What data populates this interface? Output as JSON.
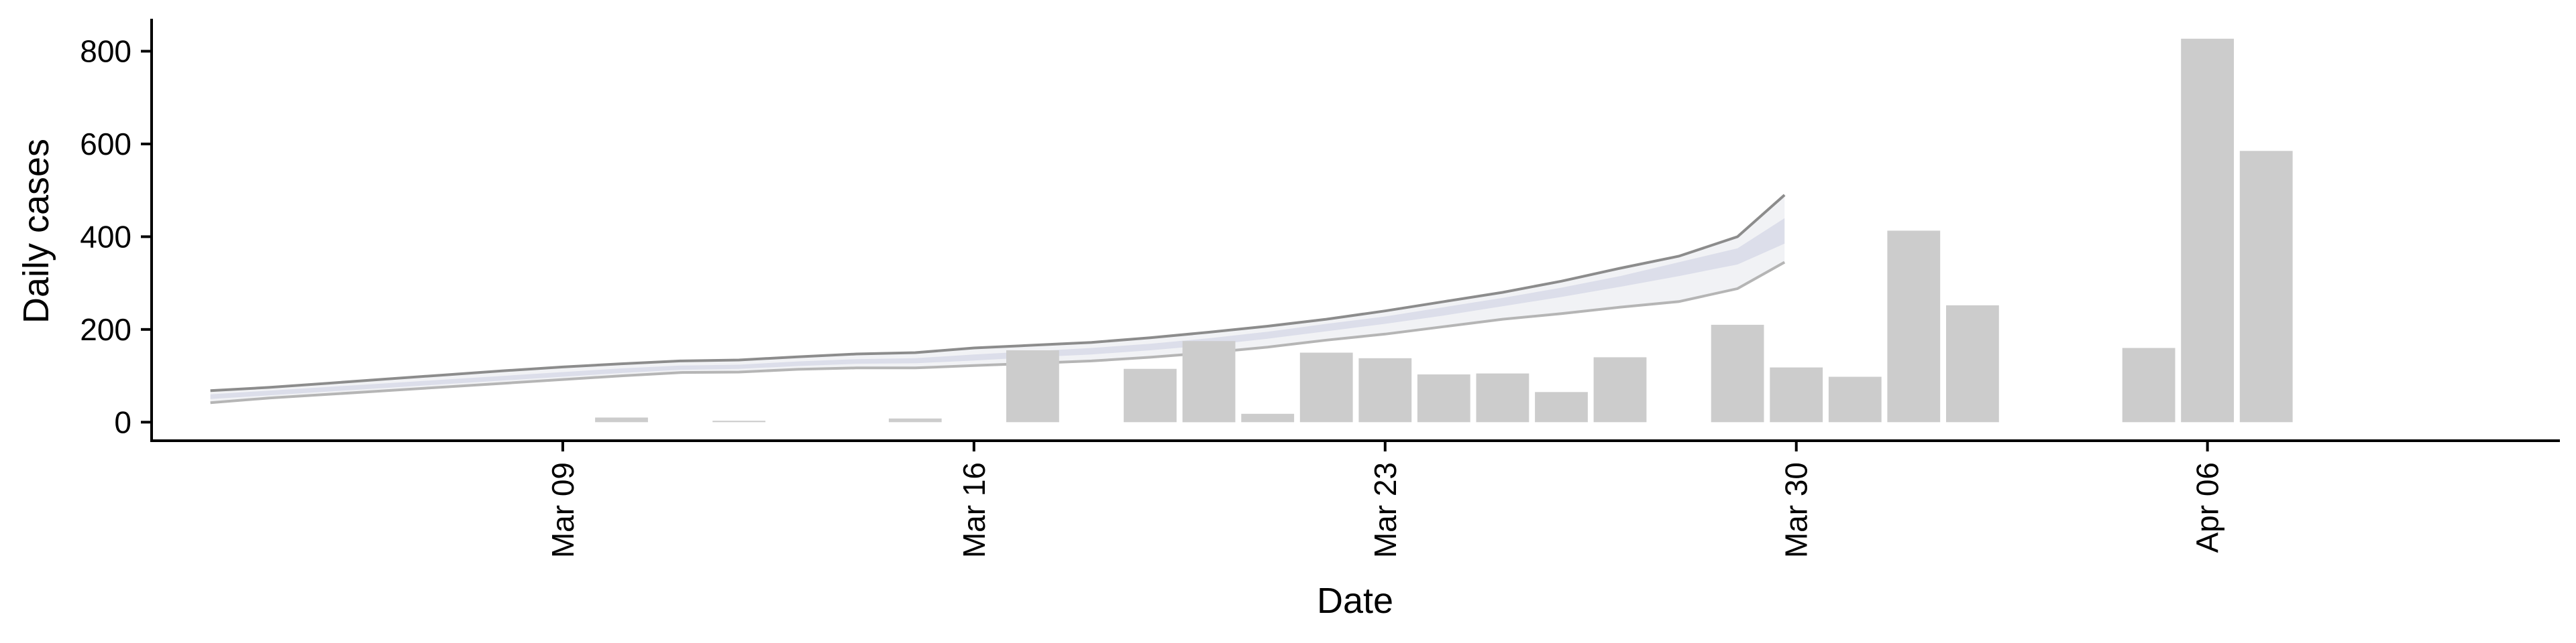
{
  "chart_data": {
    "type": "bar",
    "xlabel": "Date",
    "ylabel": "Daily cases",
    "ylim": [
      -40,
      870
    ],
    "xlim": [
      "2020-03-02",
      "2020-04-12"
    ],
    "x_ticks": [
      {
        "date": "2020-03-09",
        "label": "Mar 09"
      },
      {
        "date": "2020-03-16",
        "label": "Mar 16"
      },
      {
        "date": "2020-03-23",
        "label": "Mar 23"
      },
      {
        "date": "2020-03-30",
        "label": "Mar 30"
      },
      {
        "date": "2020-04-06",
        "label": "Apr 06"
      }
    ],
    "y_ticks": [
      0,
      200,
      400,
      600,
      800
    ],
    "bars": [
      {
        "date": "2020-03-10",
        "value": 10
      },
      {
        "date": "2020-03-12",
        "value": 3
      },
      {
        "date": "2020-03-15",
        "value": 8
      },
      {
        "date": "2020-03-17",
        "value": 155
      },
      {
        "date": "2020-03-19",
        "value": 115
      },
      {
        "date": "2020-03-20",
        "value": 175
      },
      {
        "date": "2020-03-21",
        "value": 18
      },
      {
        "date": "2020-03-22",
        "value": 150
      },
      {
        "date": "2020-03-23",
        "value": 138
      },
      {
        "date": "2020-03-24",
        "value": 103
      },
      {
        "date": "2020-03-25",
        "value": 105
      },
      {
        "date": "2020-03-26",
        "value": 65
      },
      {
        "date": "2020-03-27",
        "value": 140
      },
      {
        "date": "2020-03-29",
        "value": 210
      },
      {
        "date": "2020-03-30",
        "value": 118
      },
      {
        "date": "2020-03-31",
        "value": 98
      },
      {
        "date": "2020-04-01",
        "value": 413
      },
      {
        "date": "2020-04-02",
        "value": 252
      },
      {
        "date": "2020-04-05",
        "value": 160
      },
      {
        "date": "2020-04-06",
        "value": 827
      },
      {
        "date": "2020-04-07",
        "value": 585
      }
    ],
    "forecast_band": {
      "dates": [
        "2020-03-03",
        "2020-03-04",
        "2020-03-05",
        "2020-03-06",
        "2020-03-07",
        "2020-03-08",
        "2020-03-09",
        "2020-03-10",
        "2020-03-11",
        "2020-03-12",
        "2020-03-13",
        "2020-03-14",
        "2020-03-15",
        "2020-03-16",
        "2020-03-17",
        "2020-03-18",
        "2020-03-19",
        "2020-03-20",
        "2020-03-21",
        "2020-03-22",
        "2020-03-23",
        "2020-03-24",
        "2020-03-25",
        "2020-03-26",
        "2020-03-27",
        "2020-03-28",
        "2020-03-29"
      ],
      "lower_outer": [
        42,
        52,
        60,
        68,
        76,
        84,
        92,
        100,
        107,
        108,
        114,
        117,
        117,
        122,
        127,
        132,
        140,
        150,
        162,
        177,
        190,
        206,
        222,
        234,
        248,
        260,
        288
      ],
      "upper_outer": [
        68,
        75,
        84,
        93,
        102,
        111,
        119,
        126,
        132,
        134,
        141,
        147,
        150,
        160,
        166,
        172,
        182,
        194,
        207,
        222,
        240,
        260,
        280,
        304,
        332,
        358,
        400
      ],
      "lower_inner": [
        50,
        58,
        66,
        74,
        82,
        90,
        98,
        106,
        113,
        115,
        121,
        126,
        127,
        133,
        140,
        146,
        155,
        166,
        180,
        196,
        212,
        230,
        250,
        270,
        292,
        315,
        340
      ],
      "upper_inner": [
        60,
        68,
        76,
        84,
        92,
        100,
        108,
        116,
        122,
        124,
        131,
        136,
        138,
        146,
        153,
        160,
        169,
        181,
        195,
        212,
        228,
        248,
        268,
        290,
        315,
        345,
        375
      ],
      "tail": {
        "date": "2020-03-29.8",
        "lower_outer": 345,
        "upper_outer": 490,
        "lower_inner": 385,
        "upper_inner": 440
      }
    },
    "colors": {
      "bars": "#cccccc",
      "band_outer": "#f1f2f5",
      "band_inner": "#dcdeea",
      "band_line_upper": "#8c8c8c",
      "band_line_lower": "#b5b5b5"
    },
    "grid": false,
    "legend": "none"
  }
}
